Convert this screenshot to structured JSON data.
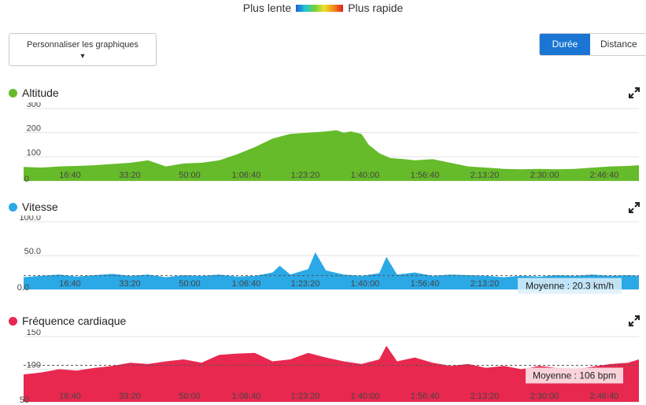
{
  "legend": {
    "slow_label": "Plus lente",
    "fast_label": "Plus rapide"
  },
  "controls": {
    "customize_label": "Personnaliser les graphiques",
    "toggle": [
      "Durée",
      "Distance"
    ],
    "toggle_active": "Durée"
  },
  "x_ticks": [
    "16:40",
    "33:20",
    "50:00",
    "1:06:40",
    "1:23:20",
    "1:40:00",
    "1:56:40",
    "2:13:20",
    "2:30:00",
    "2:46:40"
  ],
  "chart_data": [
    {
      "type": "area",
      "title": "Altitude",
      "color": "#66bb2a",
      "ylim": [
        0,
        300
      ],
      "y_ticks": [
        0,
        100,
        200,
        300
      ],
      "y_tick_labels": [
        "0",
        "100",
        "200",
        "300"
      ],
      "x_unit": "minutes",
      "x_range": [
        0,
        173
      ],
      "x": [
        0,
        5,
        10,
        15,
        20,
        25,
        30,
        35,
        40,
        45,
        50,
        55,
        60,
        65,
        70,
        75,
        80,
        85,
        88,
        90,
        92,
        95,
        97,
        100,
        103,
        107,
        110,
        115,
        120,
        125,
        130,
        135,
        140,
        145,
        150,
        155,
        160,
        165,
        170,
        173
      ],
      "values": [
        58,
        55,
        60,
        62,
        65,
        70,
        75,
        85,
        60,
        72,
        75,
        85,
        110,
        140,
        175,
        195,
        200,
        205,
        210,
        200,
        205,
        195,
        150,
        115,
        95,
        90,
        85,
        90,
        75,
        60,
        55,
        50,
        48,
        50,
        48,
        50,
        55,
        60,
        62,
        65
      ]
    },
    {
      "type": "area",
      "title": "Vitesse",
      "color": "#2aa9e6",
      "ylim": [
        0,
        100
      ],
      "y_ticks": [
        0,
        50,
        100
      ],
      "y_tick_labels": [
        "0.0",
        "50.0",
        "100.0"
      ],
      "average": 20.3,
      "average_label": "Moyenne : 20.3 km/h",
      "x_unit": "minutes",
      "x_range": [
        0,
        173
      ],
      "x": [
        0,
        5,
        10,
        15,
        20,
        25,
        30,
        35,
        40,
        45,
        50,
        55,
        60,
        65,
        70,
        72,
        75,
        80,
        82,
        85,
        90,
        95,
        100,
        102,
        105,
        110,
        115,
        120,
        125,
        130,
        135,
        140,
        145,
        150,
        155,
        160,
        165,
        170,
        173
      ],
      "values": [
        18,
        20,
        22,
        19,
        21,
        23,
        20,
        22,
        18,
        21,
        20,
        22,
        19,
        20,
        25,
        35,
        22,
        30,
        55,
        28,
        22,
        20,
        24,
        48,
        22,
        25,
        20,
        22,
        21,
        20,
        18,
        20,
        19,
        21,
        20,
        22,
        20,
        21,
        20
      ]
    },
    {
      "type": "area",
      "title": "Fréquence cardiaque",
      "color": "#e8284f",
      "ylim": [
        50,
        150
      ],
      "y_ticks": [
        50,
        100,
        150
      ],
      "y_tick_labels": [
        "50",
        "100",
        "150"
      ],
      "average": 106,
      "average_label": "Moyenne : 106 bpm",
      "x_unit": "minutes",
      "x_range": [
        0,
        173
      ],
      "x": [
        0,
        5,
        10,
        15,
        20,
        25,
        30,
        35,
        40,
        45,
        50,
        55,
        60,
        65,
        70,
        75,
        80,
        85,
        90,
        95,
        100,
        102,
        105,
        110,
        115,
        120,
        125,
        130,
        135,
        140,
        145,
        150,
        155,
        160,
        165,
        170,
        173
      ],
      "values": [
        92,
        95,
        100,
        98,
        102,
        105,
        110,
        108,
        112,
        115,
        110,
        122,
        124,
        125,
        112,
        115,
        125,
        118,
        112,
        108,
        115,
        136,
        112,
        118,
        110,
        105,
        108,
        102,
        105,
        100,
        105,
        102,
        100,
        104,
        108,
        110,
        115
      ]
    }
  ],
  "panels": [
    {
      "title": "Altitude"
    },
    {
      "title": "Vitesse"
    },
    {
      "title": "Fréquence cardiaque"
    }
  ]
}
